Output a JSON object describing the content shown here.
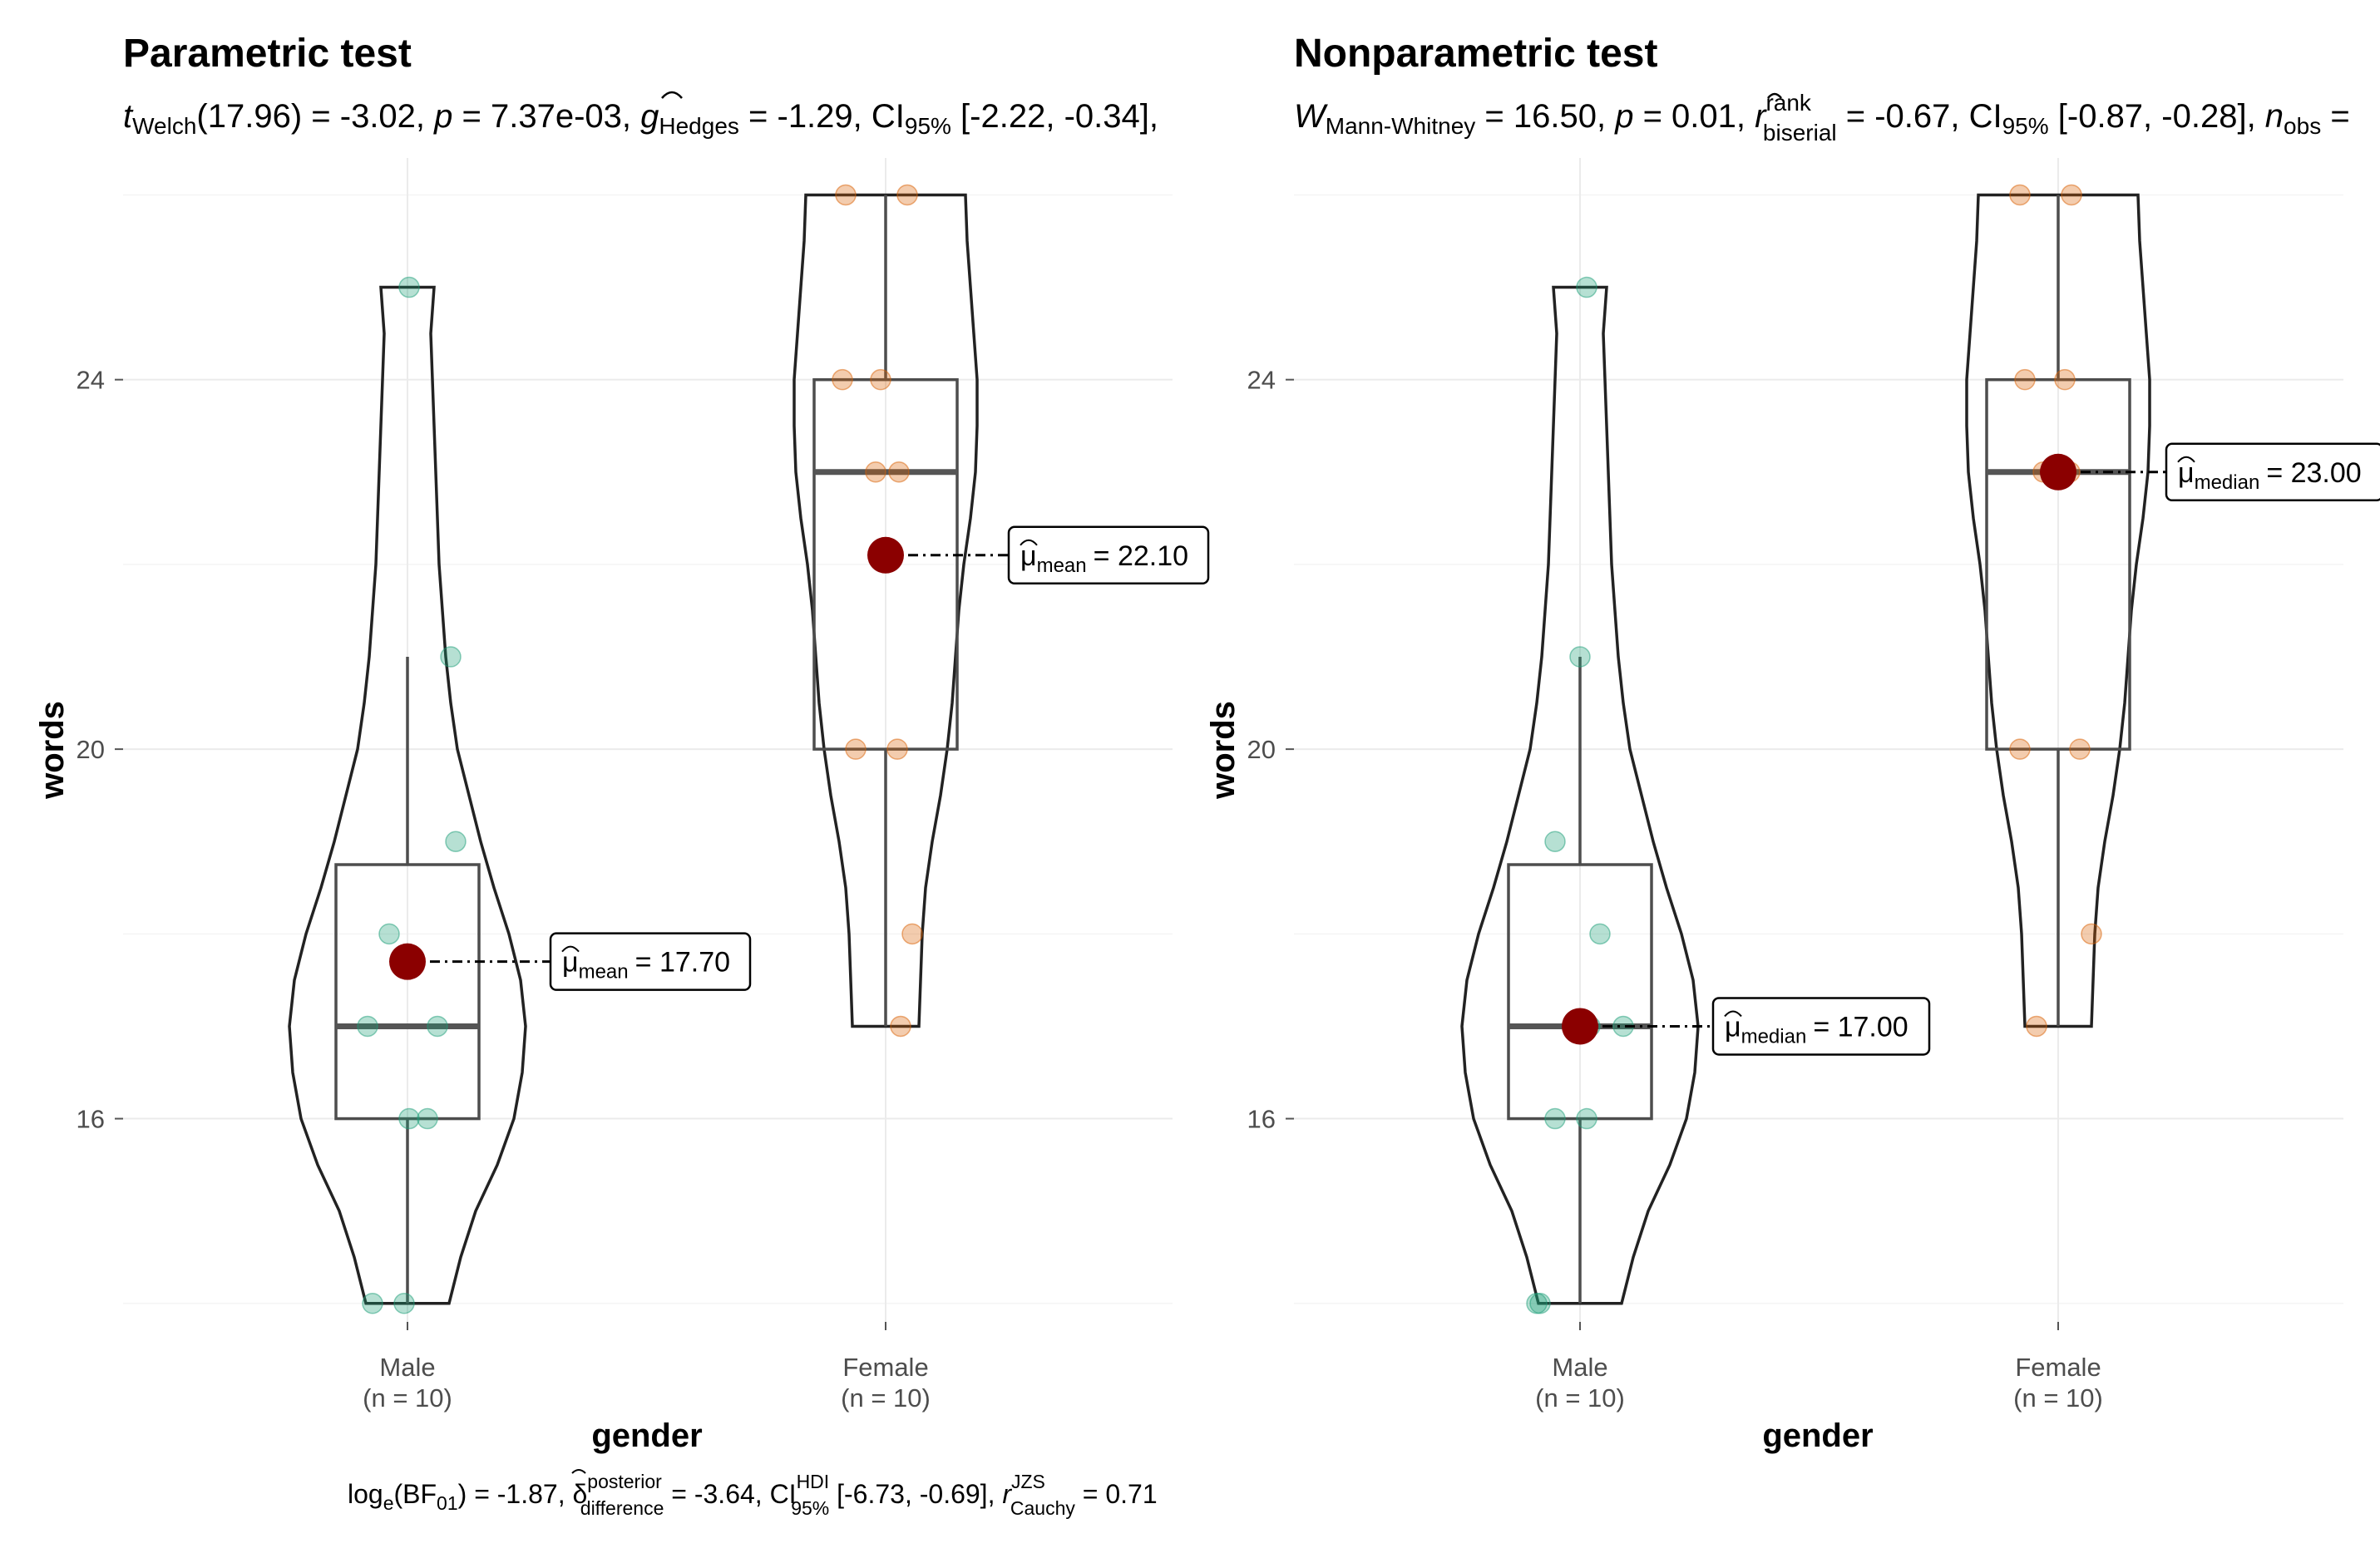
{
  "chart_data": [
    {
      "type": "violin-box",
      "title": "Parametric test",
      "xlabel": "gender",
      "ylabel": "words",
      "ylim": [
        13.8,
        26.4
      ],
      "yticks": [
        16,
        20,
        24
      ],
      "grid": true,
      "categories": [
        {
          "name": "Male",
          "n_label": "(n = 10)",
          "color": "#1B9E77"
        },
        {
          "name": "Female",
          "n_label": "(n = 10)",
          "color": "#D95F02"
        }
      ],
      "points": {
        "Male": [
          25,
          21,
          19,
          18,
          17,
          17,
          16,
          16,
          14,
          14
        ],
        "Female": [
          26,
          26,
          24,
          24,
          23,
          23,
          20,
          20,
          18,
          17
        ]
      },
      "box": {
        "Male": {
          "whisker_low": 14,
          "q1": 16,
          "median": 17,
          "q3": 18.75,
          "whisker_high": 21
        },
        "Female": {
          "whisker_low": 17,
          "q1": 20,
          "median": 23,
          "q3": 24,
          "whisker_high": 26
        }
      },
      "center": {
        "Male": {
          "value": 17.7,
          "label_sub": "mean",
          "label_value": "= 17.70"
        },
        "Female": {
          "value": 22.1,
          "label_sub": "mean",
          "label_value": "= 22.10"
        }
      },
      "subtitle": {
        "t": "t",
        "t_sub": "Welch",
        "part1": "(17.96) = -3.02, ",
        "p": "p",
        "part2": " = 7.37e-03, ",
        "g": "g",
        "g_sub": "Hedges",
        "part3": " = -1.29, CI",
        "ci_sub": "95%",
        "part4": " [-2.22, -0.34],"
      },
      "caption": {
        "a1": "log",
        "a1_sub": "e",
        "a2": "(BF",
        "a2_sub": "01",
        "a3": ") = -1.87, ",
        "delta": "δ",
        "delta_sup": "posterior",
        "delta_sub": "difference",
        "a4": " = -3.64, CI",
        "ci_sup": "HDI",
        "ci_sub": "95%",
        "a5": " [-6.73, -0.69], ",
        "r": "r",
        "r_sup": "JZS",
        "r_sub": "Cauchy",
        "a6": " = 0.71"
      }
    },
    {
      "type": "violin-box",
      "title": "Nonparametric test",
      "xlabel": "gender",
      "ylabel": "words",
      "ylim": [
        13.8,
        26.4
      ],
      "yticks": [
        16,
        20,
        24
      ],
      "grid": true,
      "categories": [
        {
          "name": "Male",
          "n_label": "(n = 10)",
          "color": "#1B9E77"
        },
        {
          "name": "Female",
          "n_label": "(n = 10)",
          "color": "#D95F02"
        }
      ],
      "points": {
        "Male": [
          25,
          21,
          19,
          18,
          17,
          17,
          16,
          16,
          14,
          14
        ],
        "Female": [
          26,
          26,
          24,
          24,
          23,
          23,
          20,
          20,
          18,
          17
        ]
      },
      "box": {
        "Male": {
          "whisker_low": 14,
          "q1": 16,
          "median": 17,
          "q3": 18.75,
          "whisker_high": 21
        },
        "Female": {
          "whisker_low": 17,
          "q1": 20,
          "median": 23,
          "q3": 24,
          "whisker_high": 26
        }
      },
      "center": {
        "Male": {
          "value": 17.0,
          "label_sub": "median",
          "label_value": "= 17.00"
        },
        "Female": {
          "value": 23.0,
          "label_sub": "median",
          "label_value": "= 23.00"
        }
      },
      "subtitle": {
        "w": "W",
        "w_sub": "Mann-Whitney",
        "part1": " = 16.50, ",
        "p": "p",
        "part2": " = 0.01, ",
        "r": "r",
        "r_sup": "rank",
        "r_sub": "biserial",
        "part3": " = -0.67, CI",
        "ci_sub": "95%",
        "part4": " [-0.87, -0.28], ",
        "n": "n",
        "n_sub": "obs",
        "part5": " ="
      }
    }
  ],
  "colors": {
    "male": "#1B9E77",
    "female": "#D95F02",
    "center_point": "#8B0000"
  },
  "mu_symbol": "μ"
}
